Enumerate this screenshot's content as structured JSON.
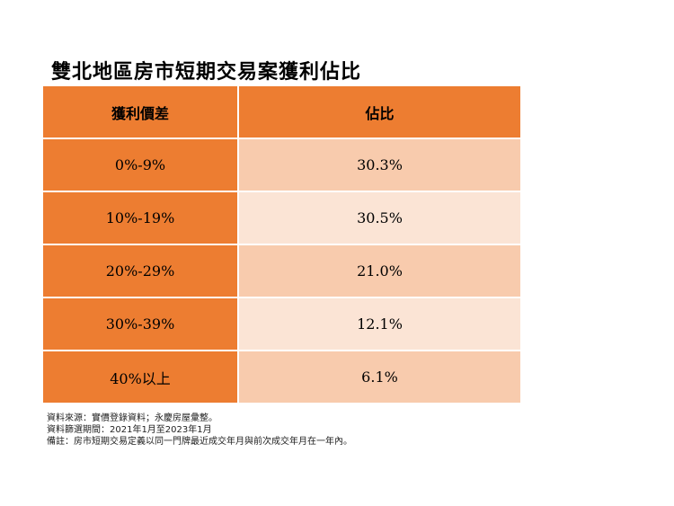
{
  "title": "雙北地區房市短期交易案獲利佔比",
  "table": {
    "headers": [
      "獲利價差",
      "佔比"
    ],
    "rows": [
      {
        "range": "0%-9%",
        "share": "30.3%"
      },
      {
        "range": "10%-19%",
        "share": "30.5%"
      },
      {
        "range": "20%-29%",
        "share": "21.0%"
      },
      {
        "range": "30%-39%",
        "share": "12.1%"
      },
      {
        "range": "40%以上",
        "share": "6.1%"
      }
    ]
  },
  "notes": [
    "資料來源：實價登錄資料；永慶房屋彙整。",
    "資料篩選期間：2021年1月至2023年1月",
    "備註：房市短期交易定義以同一門牌最近成交年月與前次成交年月在一年內。"
  ],
  "colors": {
    "header": "#ed7d31",
    "row_dark": "#f8cbad",
    "row_light": "#fbe4d5"
  },
  "chart_data": {
    "type": "table",
    "title": "雙北地區房市短期交易案獲利佔比",
    "columns": [
      "獲利價差",
      "佔比"
    ],
    "rows": [
      [
        "0%-9%",
        30.3
      ],
      [
        "10%-19%",
        30.5
      ],
      [
        "20%-29%",
        21.0
      ],
      [
        "30%-39%",
        12.1
      ],
      [
        "40%以上",
        6.1
      ]
    ]
  }
}
